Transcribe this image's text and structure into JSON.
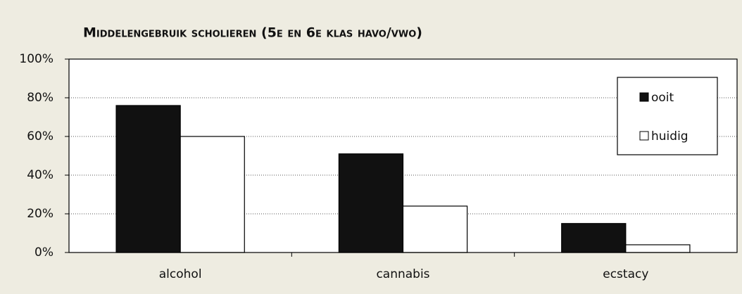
{
  "chart_data": {
    "type": "bar",
    "title": "Middelengebruik scholieren (5e en 6e klas havo/vwo)",
    "categories": [
      "alcohol",
      "cannabis",
      "ecstacy"
    ],
    "series": [
      {
        "name": "ooit",
        "color": "#111111",
        "values": [
          76,
          51,
          15
        ]
      },
      {
        "name": "huidig",
        "color": "#ffffff",
        "values": [
          60,
          24,
          4
        ]
      }
    ],
    "ylim": [
      0,
      100
    ],
    "yticks": [
      {
        "value": 0,
        "label": "0%"
      },
      {
        "value": 20,
        "label": "20%"
      },
      {
        "value": 40,
        "label": "40%"
      },
      {
        "value": 60,
        "label": "60%"
      },
      {
        "value": 80,
        "label": "80%"
      },
      {
        "value": 100,
        "label": "100%"
      }
    ],
    "grid": true,
    "legend": "upper right"
  }
}
